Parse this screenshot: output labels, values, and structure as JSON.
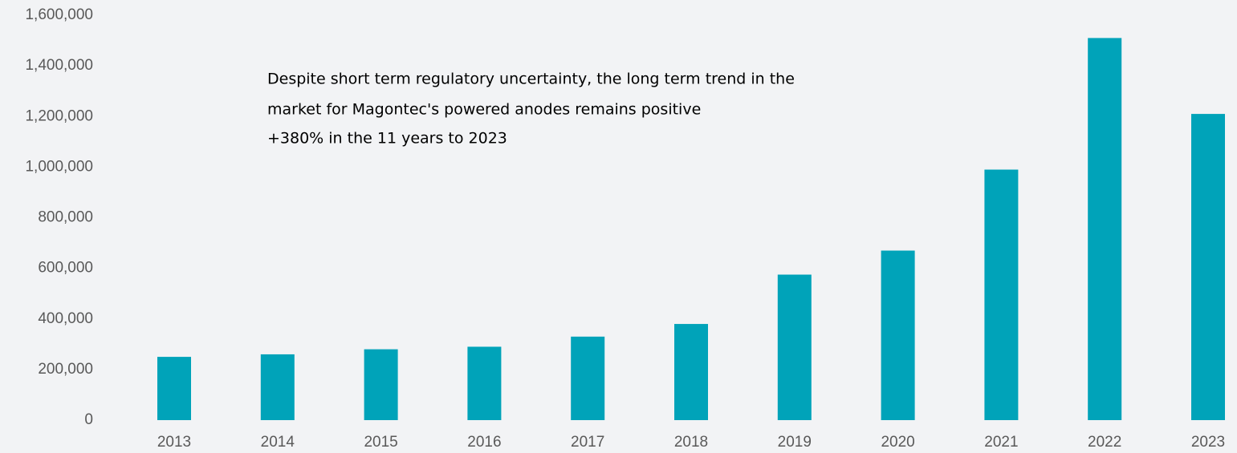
{
  "chart_data": {
    "type": "bar",
    "annotations": [
      "Despite short term regulatory uncertainty, the long term trend in the",
      "market for Magontec's powered anodes remains positive",
      "+380% in the 11 years to 2023"
    ],
    "categories": [
      "2013",
      "2014",
      "2015",
      "2016",
      "2017",
      "2018",
      "2019",
      "2020",
      "2021",
      "2022",
      "2023"
    ],
    "values": [
      250000,
      260000,
      280000,
      290000,
      330000,
      380000,
      575000,
      670000,
      990000,
      1510000,
      1210000
    ],
    "color": "#00a3b9",
    "ylim": [
      0,
      1600000
    ],
    "yticks": [
      0,
      {
        "value": 200000,
        "label": "200,000"
      },
      {
        "value": 400000,
        "label": "400,000"
      },
      {
        "value": 600000,
        "label": "600,000"
      },
      {
        "value": 800000,
        "label": "800,000"
      },
      {
        "value": 1000000,
        "label": "1,000,000"
      },
      {
        "value": 1200000,
        "label": "1,200,000"
      },
      {
        "value": 1400000,
        "label": "1,400,000"
      },
      {
        "value": 1600000,
        "label": "1,600,000"
      }
    ],
    "grid": false
  }
}
